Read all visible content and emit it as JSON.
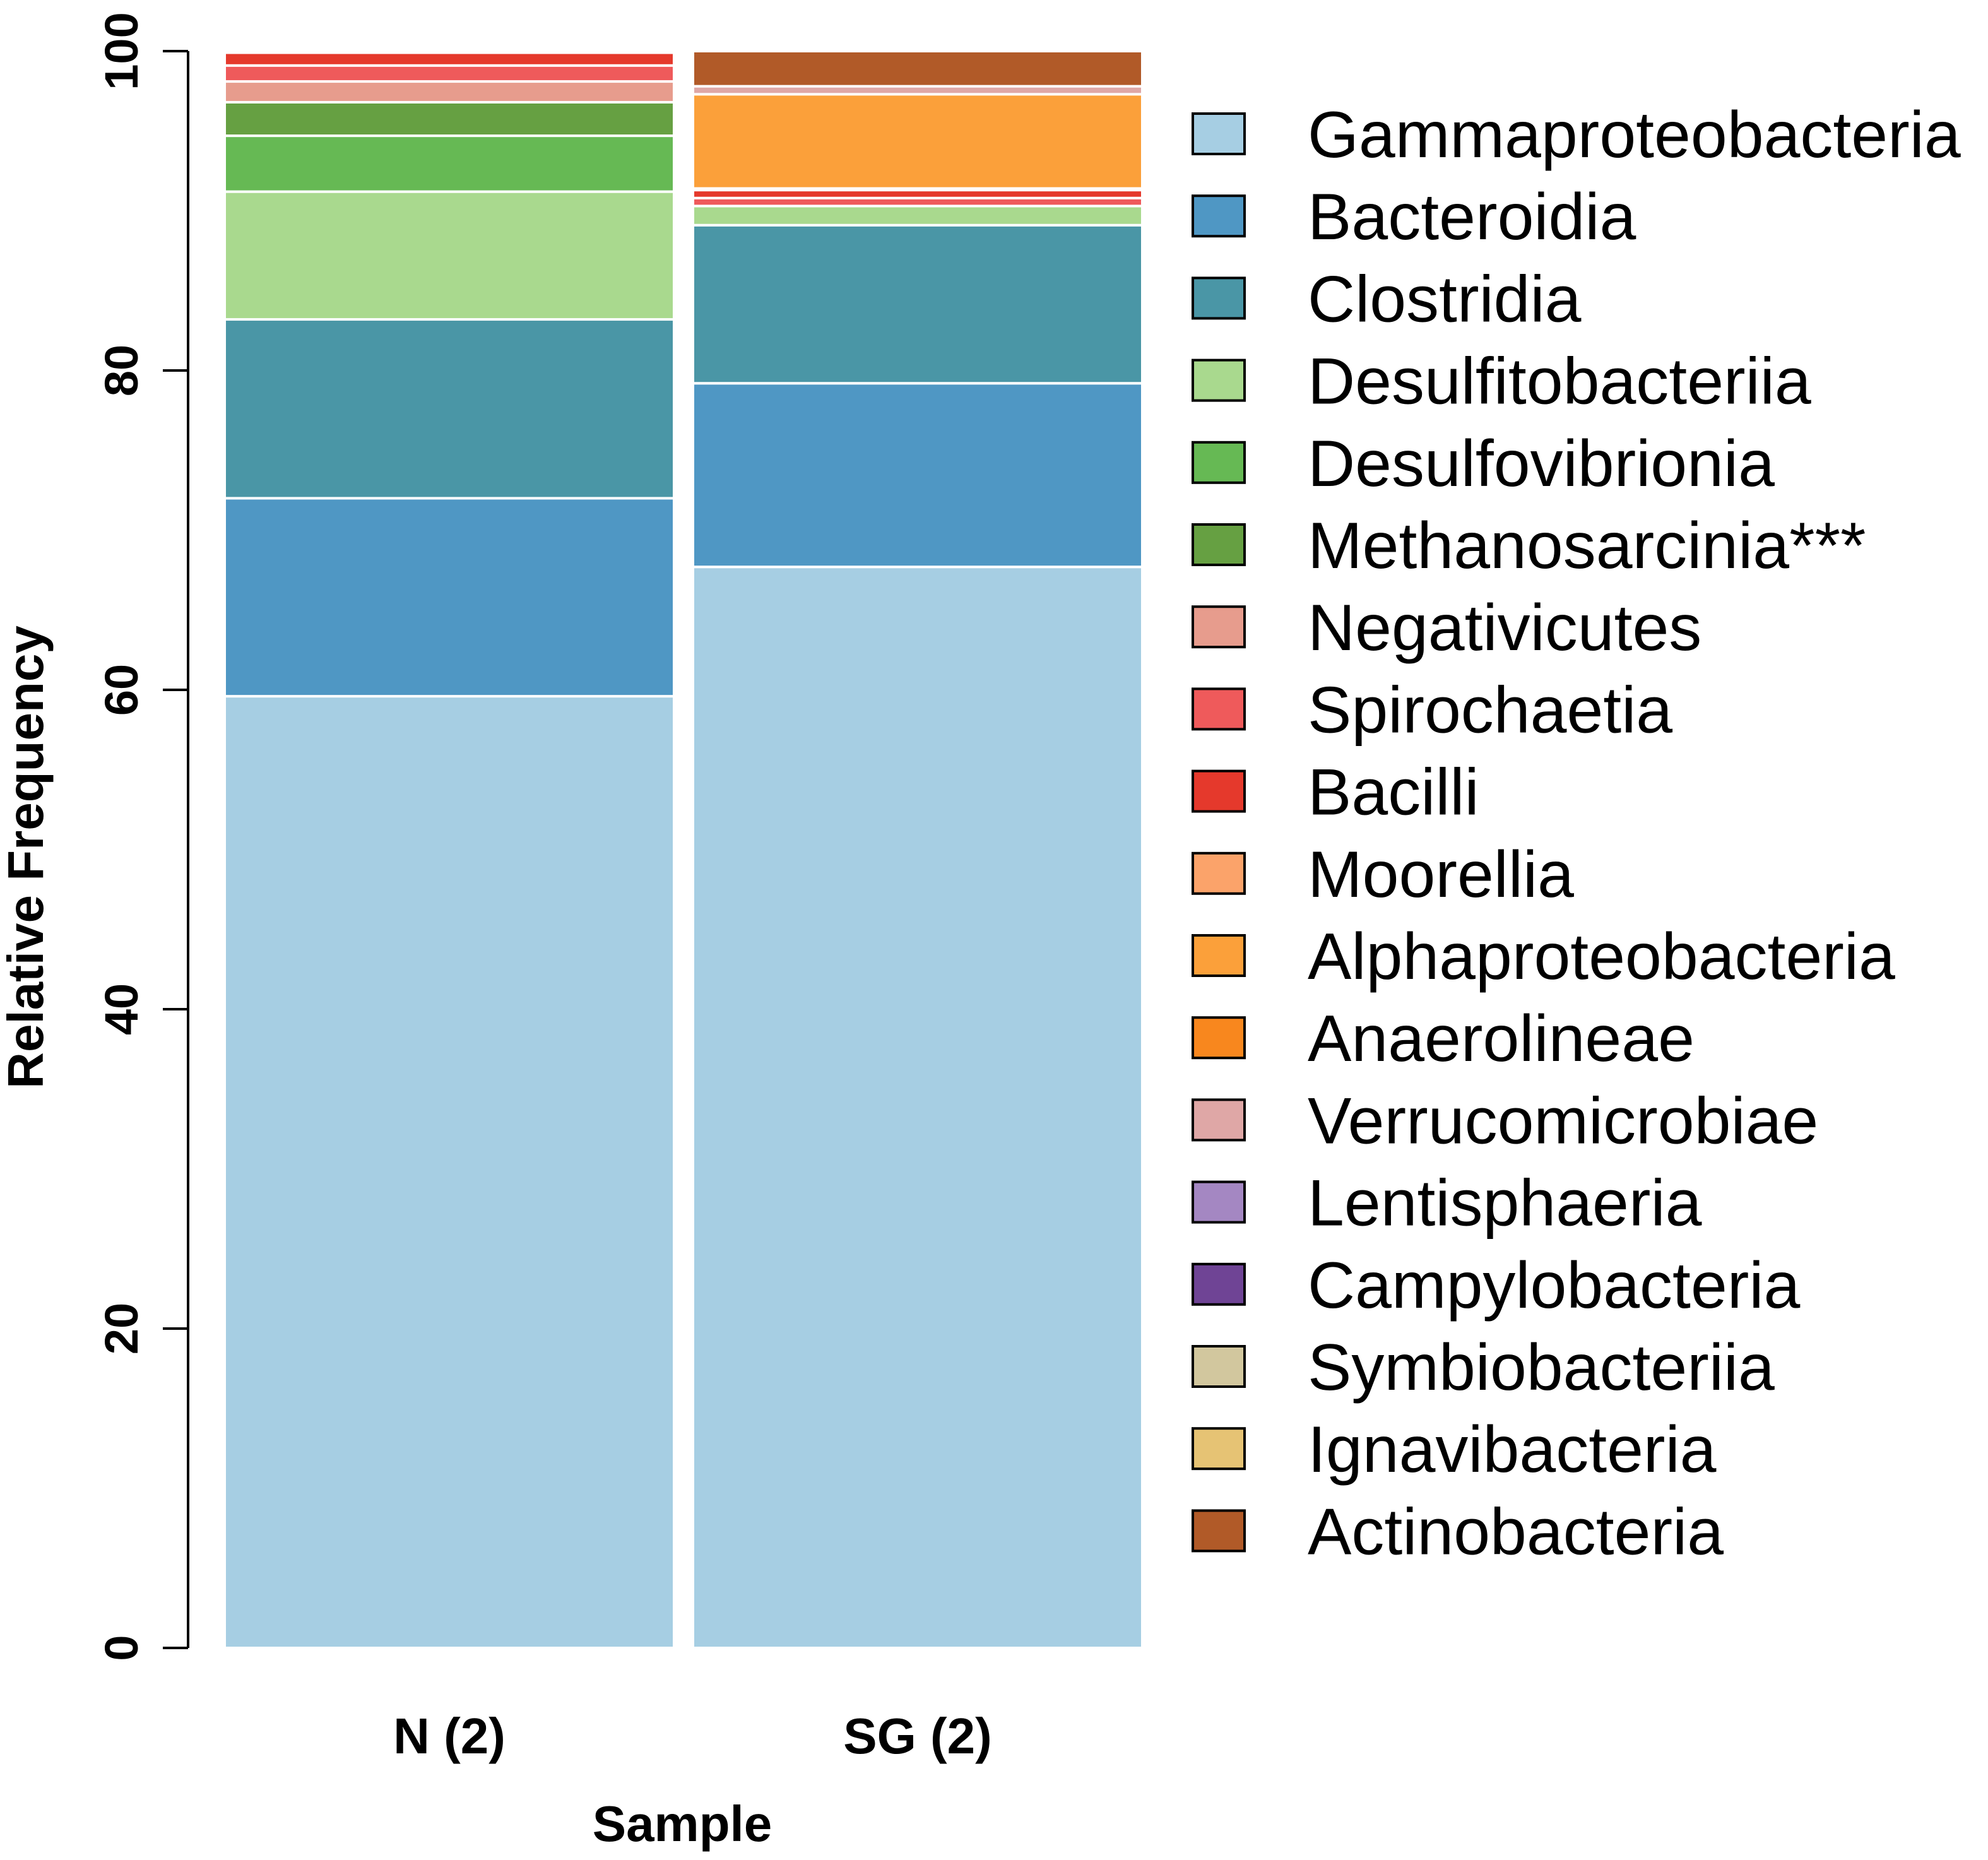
{
  "chart_data": {
    "type": "bar",
    "stacked": true,
    "xlabel": "Sample",
    "ylabel": "Relative Frequency",
    "ylim": [
      0,
      100
    ],
    "yticks": [
      "0",
      "20",
      "40",
      "60",
      "80",
      "100"
    ],
    "categories": [
      "N (2)",
      "SG (2)"
    ],
    "legend_position": "right",
    "series": [
      {
        "name": "Gammaproteobacteria",
        "color": "#a6cee3",
        "values": [
          59.6,
          67.7
        ]
      },
      {
        "name": "Bacteroidia",
        "color": "#4f97c4",
        "values": [
          12.4,
          11.5
        ]
      },
      {
        "name": "Clostridia",
        "color": "#4a96a6",
        "values": [
          11.2,
          9.9
        ]
      },
      {
        "name": "Desulfitobacteriia",
        "color": "#a9d98e",
        "values": [
          8.0,
          1.2
        ]
      },
      {
        "name": "Desulfovibrionia",
        "color": "#66b954",
        "values": [
          3.5,
          0.0
        ]
      },
      {
        "name": "Methanosarcinia***",
        "color": "#66a042",
        "values": [
          2.1,
          0.0
        ]
      },
      {
        "name": "Negativicutes",
        "color": "#e79c8d",
        "values": [
          1.3,
          0.0
        ]
      },
      {
        "name": "Spirochaetia",
        "color": "#ef5a5b",
        "values": [
          1.0,
          0.5
        ]
      },
      {
        "name": "Bacilli",
        "color": "#e5392c",
        "values": [
          0.8,
          0.5
        ]
      },
      {
        "name": "Moorellia",
        "color": "#fba36a",
        "values": [
          0.0,
          0.1
        ]
      },
      {
        "name": "Alphaproteobacteria",
        "color": "#fba03a",
        "values": [
          0.0,
          5.9
        ]
      },
      {
        "name": "Anaerolineae",
        "color": "#f8871e",
        "values": [
          0.0,
          0.0
        ]
      },
      {
        "name": "Verrucomicrobiae",
        "color": "#dfa7a6",
        "values": [
          0.0,
          0.5
        ]
      },
      {
        "name": "Lentisphaeria",
        "color": "#a487c2",
        "values": [
          0.0,
          0.0
        ]
      },
      {
        "name": "Campylobacteria",
        "color": "#6f4495",
        "values": [
          0.0,
          0.0
        ]
      },
      {
        "name": "Symbiobacteriia",
        "color": "#d2c79e",
        "values": [
          0.0,
          0.0
        ]
      },
      {
        "name": "Ignavibacteria",
        "color": "#e6c374",
        "values": [
          0.0,
          0.0
        ]
      },
      {
        "name": "Actinobacteria",
        "color": "#b15a28",
        "values": [
          0.0,
          2.2
        ]
      }
    ]
  }
}
